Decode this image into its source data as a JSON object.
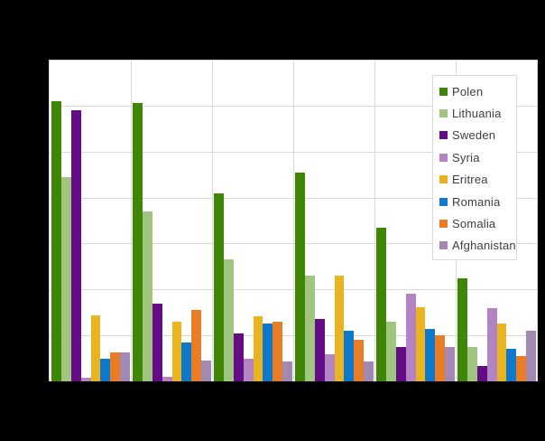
{
  "page": {
    "title": "",
    "background_color": "#000000"
  },
  "colors": {
    "plot_background": "#ffffff",
    "gridline": "#d9d9d9",
    "legend_border": "#d9d9d9",
    "legend_text": "#3d3d3d"
  },
  "chart_data": {
    "type": "bar",
    "title": "",
    "xlabel": "",
    "ylabel": "",
    "grid": true,
    "legend_position": "top-right",
    "x_tick_labels_visible": false,
    "y_tick_labels_visible": false,
    "value_unit_note": "values estimated in horizontal-gridline units; numeric axis labels are not visible in the screenshot",
    "categories": [
      "",
      "",
      "",
      "",
      "",
      ""
    ],
    "ylim": [
      0,
      7
    ],
    "y_gridline_step": 1,
    "series": [
      {
        "name": "Polen",
        "color": "#3f8606",
        "values": [
          6.1,
          6.05,
          4.1,
          4.55,
          3.35,
          2.25
        ]
      },
      {
        "name": "Lithuania",
        "color": "#a0c57f",
        "values": [
          4.45,
          3.7,
          2.65,
          2.3,
          1.3,
          0.75
        ]
      },
      {
        "name": "Sweden",
        "color": "#640c86",
        "values": [
          5.9,
          1.7,
          1.05,
          1.35,
          0.75,
          0.33
        ]
      },
      {
        "name": "Syria",
        "color": "#b383c4",
        "values": [
          0.08,
          0.1,
          0.5,
          0.6,
          1.9,
          1.6
        ]
      },
      {
        "name": "Eritrea",
        "color": "#e9b41e",
        "values": [
          1.43,
          1.3,
          1.42,
          2.3,
          1.62,
          1.25
        ]
      },
      {
        "name": "Romania",
        "color": "#0e78cc",
        "values": [
          0.5,
          0.85,
          1.25,
          1.1,
          1.15,
          0.7
        ]
      },
      {
        "name": "Somalia",
        "color": "#e87d26",
        "values": [
          0.62,
          1.55,
          1.3,
          0.9,
          1.0,
          0.55
        ]
      },
      {
        "name": "Afghanistan",
        "color": "#a289b4",
        "values": [
          0.62,
          0.45,
          0.43,
          0.43,
          0.75,
          1.1
        ]
      }
    ]
  }
}
